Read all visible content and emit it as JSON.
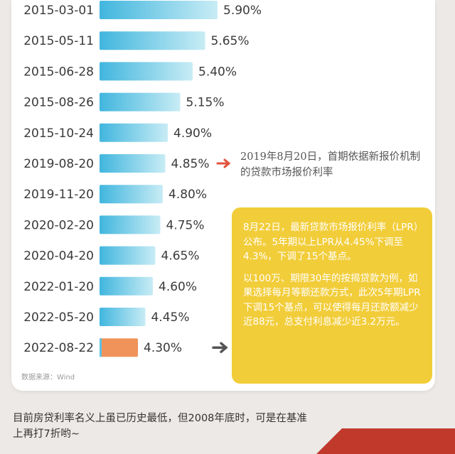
{
  "chart_data": {
    "type": "bar",
    "orientation": "horizontal",
    "categories": [
      "2015-03-01",
      "2015-05-11",
      "2015-06-28",
      "2015-08-26",
      "2015-10-24",
      "2019-08-20",
      "2019-11-20",
      "2020-02-20",
      "2020-04-20",
      "2022-01-20",
      "2022-05-20",
      "2022-08-22"
    ],
    "values": [
      5.9,
      5.65,
      5.4,
      5.15,
      4.9,
      4.85,
      4.8,
      4.75,
      4.65,
      4.6,
      4.45,
      4.3
    ],
    "value_labels": [
      "5.90%",
      "5.65%",
      "5.40%",
      "5.15%",
      "4.90%",
      "4.85%",
      "4.80%",
      "4.75%",
      "4.65%",
      "4.60%",
      "4.45%",
      "4.30%"
    ],
    "highlight_index": 11,
    "colors": {
      "bar": "#5ec2e2",
      "bar_light": "#bfe8f3",
      "highlight": "#f0935a",
      "arrow_red": "#e0533d",
      "arrow_gray": "#555555"
    },
    "source": "数据来源：Wind"
  },
  "annotations": {
    "lpr_2019": "2019年8月20日，首期依据新报价机制的贷款市场报价利率",
    "box_p1": "8月22日，最新贷款市场报价利率（LPR）公布。5年期以上LPR从4.45%下调至4.3%，下调了15个基点。",
    "box_p2": "以100万、期限30年的按揭贷款为例，如果选择每月等额还款方式，此次5年期LPR下调15个基点，可以使得每月还款额减少近88元，总支付利息减少近3.2万元。"
  },
  "footer": {
    "text": "目前房贷利率名义上虽已历史最低，但2008年底时，可是在基准上再打7折哟~"
  }
}
